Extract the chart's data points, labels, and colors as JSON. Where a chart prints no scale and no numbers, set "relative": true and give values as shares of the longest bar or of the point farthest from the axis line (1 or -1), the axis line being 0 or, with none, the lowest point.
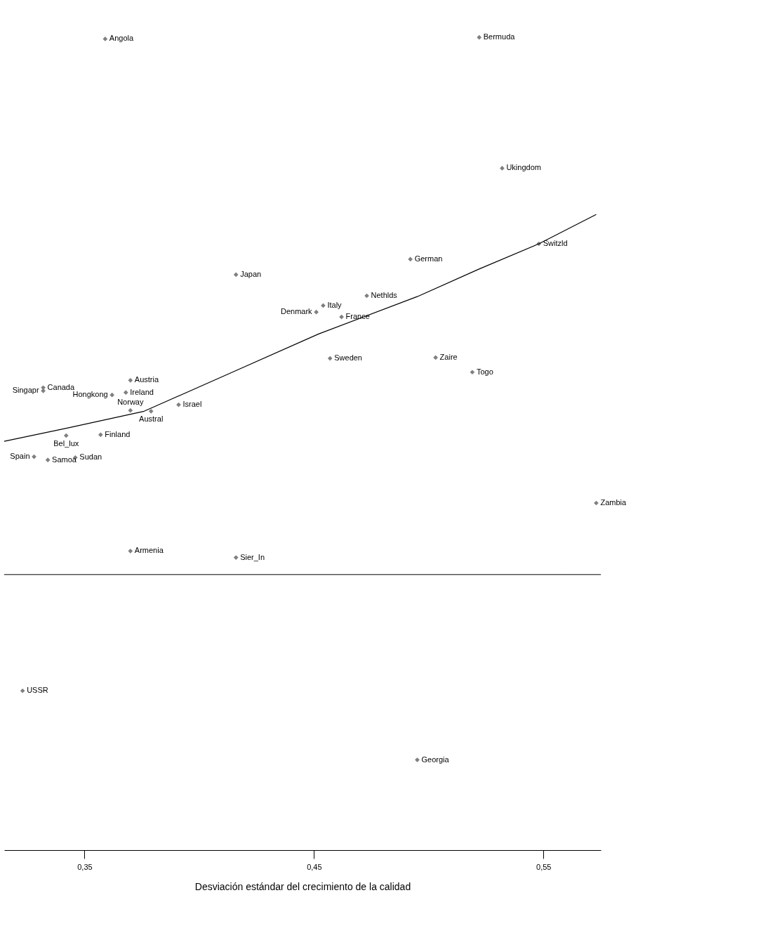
{
  "chart_data": {
    "type": "scatter",
    "relative": true,
    "xlabel": "Desviación estándar del crecimiento de la calidad",
    "xlim": [
      0.315,
      0.575
    ],
    "xticks": [
      {
        "value": 0.35,
        "label": "0,35"
      },
      {
        "value": 0.45,
        "label": "0,45"
      },
      {
        "value": 0.55,
        "label": "0,55"
      }
    ],
    "series": [
      {
        "type": "scatter",
        "color": "#808080",
        "marker": "diamond",
        "x": [
          0.359,
          0.522,
          0.532,
          0.548,
          0.492,
          0.416,
          0.454,
          0.451,
          0.473,
          0.462,
          0.457,
          0.503,
          0.519,
          0.37,
          0.332,
          0.332,
          0.368,
          0.362,
          0.391,
          0.37,
          0.379,
          0.342,
          0.357,
          0.328,
          0.334,
          0.346,
          0.573,
          0.37,
          0.416,
          0.323,
          0.495
        ],
        "values": [
          0.998,
          1.0,
          0.839,
          0.746,
          0.727,
          0.708,
          0.67,
          0.662,
          0.682,
          0.656,
          0.605,
          0.606,
          0.588,
          0.578,
          0.569,
          0.565,
          0.563,
          0.56,
          0.548,
          0.541,
          0.54,
          0.51,
          0.511,
          0.484,
          0.48,
          0.483,
          0.427,
          0.368,
          0.36,
          0.196,
          0.111
        ]
      },
      {
        "type": "line",
        "color": "#000000",
        "marker": "none",
        "line_style": "solid",
        "x": [
          0.315,
          0.342,
          0.376,
          0.416,
          0.452,
          0.495,
          0.522,
          0.548,
          0.573
        ],
        "values": [
          0.503,
          0.519,
          0.54,
          0.59,
          0.635,
          0.681,
          0.715,
          0.746,
          0.782
        ]
      }
    ],
    "annotations": [
      {
        "text": "Angola",
        "x": 0.359,
        "y": 0.998
      },
      {
        "text": "Bermuda",
        "x": 0.522,
        "y": 1.0
      },
      {
        "text": "Ukingdom",
        "x": 0.532,
        "y": 0.839
      },
      {
        "text": "Switzld",
        "x": 0.548,
        "y": 0.746
      },
      {
        "text": "German",
        "x": 0.492,
        "y": 0.727
      },
      {
        "text": "Japan",
        "x": 0.416,
        "y": 0.708
      },
      {
        "text": "Italy",
        "x": 0.454,
        "y": 0.67
      },
      {
        "text": "Denmark",
        "x": 0.451,
        "y": 0.662
      },
      {
        "text": "Nethlds",
        "x": 0.473,
        "y": 0.682
      },
      {
        "text": "France",
        "x": 0.462,
        "y": 0.656
      },
      {
        "text": "Sweden",
        "x": 0.457,
        "y": 0.605
      },
      {
        "text": "Zaire",
        "x": 0.503,
        "y": 0.606
      },
      {
        "text": "Togo",
        "x": 0.519,
        "y": 0.588
      },
      {
        "text": "Austria",
        "x": 0.37,
        "y": 0.578
      },
      {
        "text": "Canada",
        "x": 0.332,
        "y": 0.569
      },
      {
        "text": "Singapr",
        "x": 0.332,
        "y": 0.565
      },
      {
        "text": "Ireland",
        "x": 0.368,
        "y": 0.563
      },
      {
        "text": "Hongkong",
        "x": 0.362,
        "y": 0.56
      },
      {
        "text": "Israel",
        "x": 0.391,
        "y": 0.548
      },
      {
        "text": "Norway",
        "x": 0.37,
        "y": 0.541
      },
      {
        "text": "Austral",
        "x": 0.379,
        "y": 0.54
      },
      {
        "text": "Bel_lux",
        "x": 0.342,
        "y": 0.51
      },
      {
        "text": "Finland",
        "x": 0.357,
        "y": 0.511
      },
      {
        "text": "Spain",
        "x": 0.328,
        "y": 0.484
      },
      {
        "text": "Samoa",
        "x": 0.334,
        "y": 0.48
      },
      {
        "text": "Sudan",
        "x": 0.346,
        "y": 0.483
      },
      {
        "text": "Zambia",
        "x": 0.573,
        "y": 0.427
      },
      {
        "text": "Armenia",
        "x": 0.37,
        "y": 0.368
      },
      {
        "text": "Sier_In",
        "x": 0.416,
        "y": 0.36
      },
      {
        "text": "USSR",
        "x": 0.323,
        "y": 0.196
      },
      {
        "text": "Georgia",
        "x": 0.495,
        "y": 0.111
      }
    ],
    "ref_lines": [
      {
        "axis": "y",
        "value": 0.339,
        "color": "#000000"
      }
    ],
    "grid": false
  }
}
